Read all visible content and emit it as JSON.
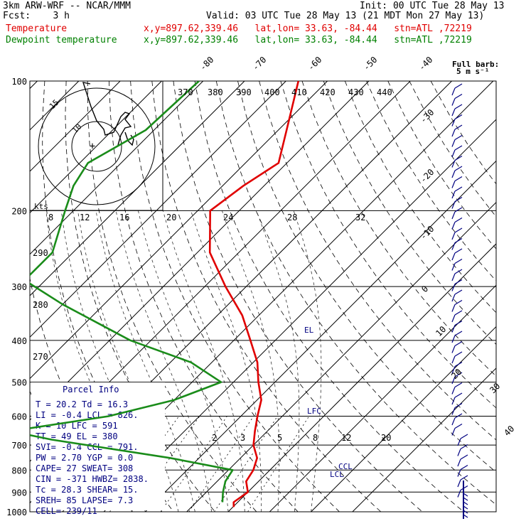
{
  "header": {
    "model": "3km ARW-WRF -- NCAR/MMM",
    "init": "Init: 00 UTC Tue 28 May 13",
    "fcst": "Fcst:    3 h",
    "valid": "Valid: 03 UTC Tue 28 May 13 (21 MDT Mon 27 May 13)",
    "temp_label": "Temperature",
    "temp_loc": "x,y=897.62,339.46   lat,lon= 33.63, -84.44   stn=ATL ,72219",
    "dew_label": "Dewpoint temperature",
    "dew_loc": "x,y=897.62,339.46   lat,lon= 33.63, -84.44   stn=ATL ,72219"
  },
  "colors": {
    "temperature": "#e00000",
    "dewpoint": "#1a8c1a",
    "parcel": "#000080",
    "grid": "#000000"
  },
  "chart_data": {
    "type": "line",
    "title": "Skew-T log-P sounding",
    "y_axis": "pressure (hPa), log scale",
    "pressure_ticks": [
      "100",
      "200",
      "300",
      "400",
      "500",
      "600",
      "700",
      "800",
      "900",
      "1000"
    ],
    "isotherm_labels": [
      "-80",
      "-70",
      "-60",
      "-50",
      "-40",
      "-30",
      "-20",
      "-10",
      "0",
      "10",
      "20",
      "30",
      "40"
    ],
    "theta_labels": [
      "370",
      "380",
      "390",
      "400",
      "410",
      "420",
      "430",
      "440",
      "290",
      "280",
      "270"
    ],
    "mixing_ratio_labels": [
      "2",
      "3",
      "5",
      "8",
      "12",
      "20"
    ],
    "hodo_speed_labels": [
      "8",
      "12",
      "16",
      "20",
      "24",
      "28",
      "32"
    ],
    "hodo_ring_labels": [
      "10",
      "15",
      "kts"
    ],
    "wind_label": "Full barb:",
    "wind_label2": "5 m s⁻¹",
    "level_labels": [
      "EL",
      "LFC",
      "CCL",
      "LCL"
    ],
    "temperature": {
      "name": "Temperature",
      "points": [
        {
          "p": 100,
          "t": -67
        },
        {
          "p": 130,
          "t": -58
        },
        {
          "p": 155,
          "t": -52
        },
        {
          "p": 175,
          "t": -55
        },
        {
          "p": 200,
          "t": -57
        },
        {
          "p": 250,
          "t": -47
        },
        {
          "p": 300,
          "t": -35
        },
        {
          "p": 350,
          "t": -24
        },
        {
          "p": 400,
          "t": -16
        },
        {
          "p": 450,
          "t": -9
        },
        {
          "p": 500,
          "t": -4
        },
        {
          "p": 550,
          "t": 1
        },
        {
          "p": 600,
          "t": 4
        },
        {
          "p": 650,
          "t": 7
        },
        {
          "p": 700,
          "t": 10
        },
        {
          "p": 750,
          "t": 14
        },
        {
          "p": 800,
          "t": 16
        },
        {
          "p": 850,
          "t": 17
        },
        {
          "p": 900,
          "t": 20
        },
        {
          "p": 950,
          "t": 19
        },
        {
          "p": 975,
          "t": 20.2
        }
      ]
    },
    "dewpoint": {
      "name": "Dewpoint temperature",
      "points": [
        {
          "p": 100,
          "t": -91
        },
        {
          "p": 130,
          "t": -92
        },
        {
          "p": 155,
          "t": -98
        },
        {
          "p": 175,
          "t": -96
        },
        {
          "p": 200,
          "t": -92
        },
        {
          "p": 250,
          "t": -85
        },
        {
          "p": 290,
          "t": -85
        },
        {
          "p": 330,
          "t": -70
        },
        {
          "p": 400,
          "t": -45
        },
        {
          "p": 450,
          "t": -25
        },
        {
          "p": 500,
          "t": -13
        },
        {
          "p": 550,
          "t": -20
        },
        {
          "p": 600,
          "t": -32
        },
        {
          "p": 650,
          "t": -52
        },
        {
          "p": 680,
          "t": -40
        },
        {
          "p": 750,
          "t": -7
        },
        {
          "p": 800,
          "t": 11
        },
        {
          "p": 850,
          "t": 12
        },
        {
          "p": 900,
          "t": 14
        },
        {
          "p": 950,
          "t": 16.3
        }
      ]
    }
  },
  "parcel_info": {
    "title": "Parcel Info",
    "rows": [
      "T  =   20.2  Td =  16.3",
      "LI =   -0.4  LCL =  826.",
      "K  =     10  LFC =  591",
      "TT =     49  EL  =  380",
      "SVI=   -0.4  CCL =  791.",
      "PW =   2.70  YGP =   0.0",
      "CAPE=    27  SWEAT=  308",
      "CIN =  -371  HWBZ= 2838.",
      "Tc =   28.3  SHEAR=  15.",
      "SREH=    85  LAPSE=  7.3",
      "CELL= 239/11"
    ]
  }
}
